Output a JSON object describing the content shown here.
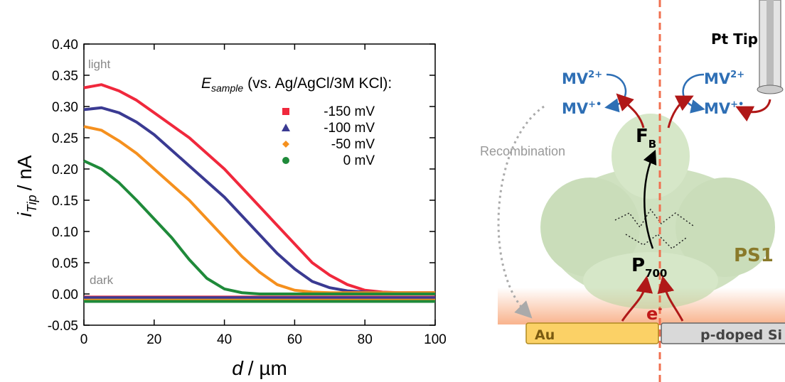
{
  "chart_data": {
    "type": "line",
    "y_label": {
      "symbol": "i",
      "subscript": "Tip",
      "unit": "/ nA"
    },
    "x_label": {
      "symbol": "d",
      "unit": "/ µm"
    },
    "legend_title": {
      "symbol": "E",
      "subscript": "sample",
      "text": "(vs. Ag/AgCl/3M KCl):"
    },
    "annotations": [
      "light",
      "dark"
    ],
    "x": [
      0,
      5,
      10,
      15,
      20,
      25,
      30,
      35,
      40,
      45,
      50,
      55,
      60,
      65,
      70,
      75,
      80,
      85,
      90,
      95,
      100
    ],
    "series": [
      {
        "name": "-150 mV",
        "color": "#f0283c",
        "marker": "square",
        "values": [
          0.33,
          0.335,
          0.325,
          0.31,
          0.29,
          0.27,
          0.25,
          0.225,
          0.2,
          0.17,
          0.14,
          0.11,
          0.08,
          0.05,
          0.03,
          0.015,
          0.006,
          0.003,
          0.002,
          0.002,
          0.002
        ],
        "dark_values": [
          -0.005,
          -0.005,
          -0.005,
          -0.005,
          -0.005,
          -0.005,
          -0.005,
          -0.005,
          -0.005,
          -0.005,
          -0.005,
          -0.005,
          -0.005,
          -0.005,
          -0.005,
          -0.005,
          -0.005,
          -0.005,
          -0.005,
          -0.005,
          -0.005
        ]
      },
      {
        "name": "-100 mV",
        "color": "#3a3a92",
        "marker": "triangle",
        "values": [
          0.295,
          0.298,
          0.29,
          0.275,
          0.255,
          0.23,
          0.205,
          0.18,
          0.155,
          0.125,
          0.095,
          0.065,
          0.04,
          0.02,
          0.01,
          0.005,
          0.003,
          0.002,
          0.002,
          0.002,
          0.002
        ],
        "dark_values": [
          -0.006,
          -0.006,
          -0.006,
          -0.006,
          -0.006,
          -0.006,
          -0.006,
          -0.006,
          -0.006,
          -0.006,
          -0.006,
          -0.006,
          -0.006,
          -0.006,
          -0.006,
          -0.006,
          -0.006,
          -0.006,
          -0.006,
          -0.006,
          -0.006
        ]
      },
      {
        "name": "-50 mV",
        "color": "#f5901e",
        "marker": "diamond",
        "values": [
          0.268,
          0.262,
          0.245,
          0.225,
          0.2,
          0.175,
          0.15,
          0.12,
          0.09,
          0.06,
          0.035,
          0.015,
          0.006,
          0.003,
          0.002,
          0.002,
          0.002,
          0.002,
          0.002,
          0.002,
          0.002
        ],
        "dark_values": [
          -0.01,
          -0.01,
          -0.01,
          -0.01,
          -0.01,
          -0.01,
          -0.01,
          -0.01,
          -0.01,
          -0.01,
          -0.01,
          -0.01,
          -0.01,
          -0.01,
          -0.01,
          -0.01,
          -0.01,
          -0.01,
          -0.01,
          -0.01,
          -0.01
        ]
      },
      {
        "name": "0 mV",
        "color": "#1f8a3a",
        "marker": "circle",
        "values": [
          0.213,
          0.2,
          0.178,
          0.15,
          0.12,
          0.09,
          0.055,
          0.025,
          0.008,
          0.002,
          0.0,
          0.0,
          0.0,
          0.0,
          0.0,
          0.0,
          0.0,
          0.0,
          0.0,
          0.0,
          0.0
        ],
        "dark_values": [
          -0.012,
          -0.012,
          -0.012,
          -0.012,
          -0.012,
          -0.012,
          -0.012,
          -0.012,
          -0.012,
          -0.012,
          -0.012,
          -0.012,
          -0.012,
          -0.012,
          -0.012,
          -0.012,
          -0.012,
          -0.012,
          -0.012,
          -0.012,
          -0.012
        ]
      }
    ],
    "xlim": [
      0,
      100
    ],
    "xticks": [
      0,
      20,
      40,
      60,
      80,
      100
    ],
    "ylim": [
      -0.05,
      0.4
    ],
    "yticks": [
      -0.05,
      {
        "value": 0,
        "label": "0.00"
      },
      0.05,
      {
        "value": 0.1,
        "label": "0.10"
      },
      0.15,
      {
        "value": 0.2,
        "label": "0.20"
      },
      0.25,
      {
        "value": 0.3,
        "label": "0.30"
      },
      0.35,
      {
        "value": 0.4,
        "label": "0.40"
      }
    ],
    "grid": false
  },
  "diagram": {
    "tip": "Pt Tip",
    "left_couple": {
      "ox": "MV",
      "ox_charge": "2+",
      "red": "MV",
      "red_charge": "+•"
    },
    "right_couple": {
      "ox": "MV",
      "ox_charge": "2+",
      "red": "MV",
      "red_charge": "+•"
    },
    "recombination": "Recombination",
    "fb": {
      "symbol": "F",
      "subscript": "B"
    },
    "p700": {
      "symbol": "P",
      "subscript": "700"
    },
    "protein": "PS1",
    "electron": {
      "symbol": "e",
      "superscript": "-"
    },
    "electrodes": [
      "Au",
      "p-doped Si"
    ]
  }
}
